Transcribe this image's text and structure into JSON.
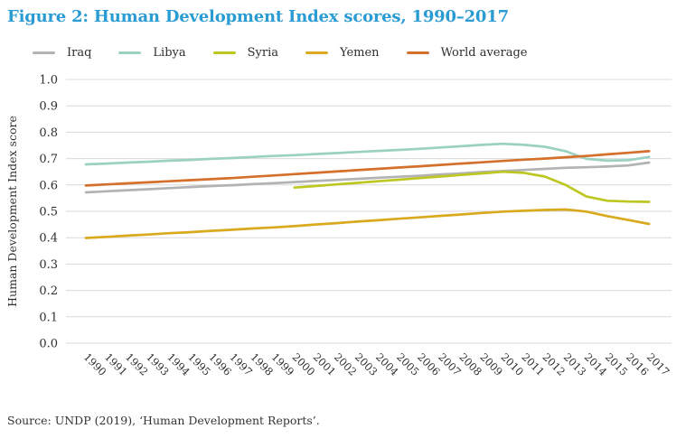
{
  "figure": {
    "title": "Figure 2: Human Development Index scores, 1990–2017",
    "title_color": "#2b9cd3"
  },
  "source": {
    "text": "Source: UNDP (2019), ‘Human Development Reports’."
  },
  "chart_data": {
    "type": "line",
    "title": "Figure 2: Human Development Index scores, 1990–2017",
    "xlabel": "",
    "ylabel": "Human Development Index score",
    "ylim": [
      0.0,
      1.0
    ],
    "grid": "horizontal",
    "gridline_color": "#d9d9d9",
    "legend_position": "top-left",
    "y_ticks": [
      "1.0",
      "0.9",
      "0.8",
      "0.7",
      "0.6",
      "0.5",
      "0.4",
      "0.3",
      "0.2",
      "0.1",
      "0.0"
    ],
    "x_ticks": [
      "1990",
      "1991",
      "1992",
      "1993",
      "1994",
      "1995",
      "1996",
      "1997",
      "1998",
      "1999",
      "2000",
      "2001",
      "2002",
      "2003",
      "2004",
      "2005",
      "2006",
      "2007",
      "2008",
      "2009",
      "2010",
      "2011",
      "2012",
      "2013",
      "2014",
      "2015",
      "2016",
      "2017"
    ],
    "series": [
      {
        "name": "Iraq",
        "color": "#b3b3b3",
        "start_year": 1990,
        "values": [
          0.572,
          0.576,
          0.58,
          0.584,
          0.588,
          0.592,
          0.596,
          0.599,
          0.603,
          0.607,
          0.611,
          0.615,
          0.619,
          0.623,
          0.627,
          0.631,
          0.635,
          0.64,
          0.644,
          0.649,
          0.653,
          0.657,
          0.661,
          0.665,
          0.667,
          0.67,
          0.674,
          0.685
        ]
      },
      {
        "name": "Libya",
        "color": "#9bd1c1",
        "start_year": 1990,
        "values": [
          0.678,
          0.681,
          0.685,
          0.688,
          0.692,
          0.695,
          0.699,
          0.702,
          0.706,
          0.71,
          0.713,
          0.717,
          0.721,
          0.725,
          0.729,
          0.733,
          0.737,
          0.742,
          0.747,
          0.752,
          0.756,
          0.752,
          0.745,
          0.728,
          0.699,
          0.692,
          0.694,
          0.706
        ]
      },
      {
        "name": "Syria",
        "color": "#bdc722",
        "start_year": 2000,
        "values": [
          0.59,
          0.596,
          0.602,
          0.608,
          0.614,
          0.62,
          0.626,
          0.632,
          0.638,
          0.644,
          0.65,
          0.646,
          0.632,
          0.6,
          0.556,
          0.54,
          0.537,
          0.536
        ]
      },
      {
        "name": "Yemen",
        "color": "#d9a91e",
        "start_year": 1990,
        "values": [
          0.399,
          0.403,
          0.408,
          0.412,
          0.417,
          0.421,
          0.426,
          0.43,
          0.435,
          0.439,
          0.444,
          0.45,
          0.455,
          0.461,
          0.466,
          0.472,
          0.477,
          0.483,
          0.488,
          0.494,
          0.499,
          0.502,
          0.505,
          0.507,
          0.499,
          0.482,
          0.467,
          0.452
        ]
      },
      {
        "name": "World average",
        "color": "#d4702c",
        "start_year": 1990,
        "values": [
          0.598,
          0.602,
          0.606,
          0.61,
          0.614,
          0.618,
          0.622,
          0.626,
          0.631,
          0.636,
          0.641,
          0.646,
          0.651,
          0.656,
          0.661,
          0.666,
          0.671,
          0.676,
          0.681,
          0.686,
          0.691,
          0.696,
          0.7,
          0.705,
          0.71,
          0.716,
          0.722,
          0.728
        ]
      }
    ]
  }
}
